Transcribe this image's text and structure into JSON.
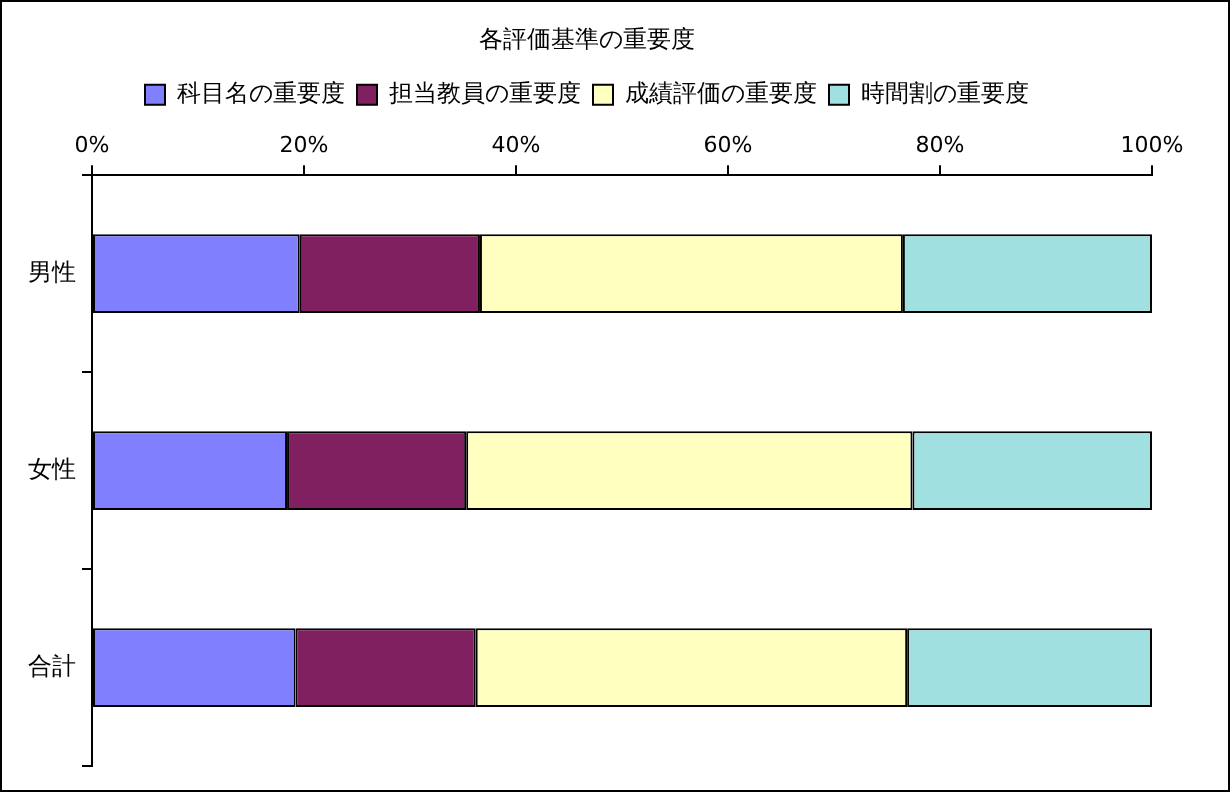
{
  "chart_data": {
    "type": "bar",
    "orientation": "horizontal",
    "stacked": true,
    "title": "各評価基準の重要度",
    "categories": [
      "男性",
      "女性",
      "合計"
    ],
    "series": [
      {
        "name": "科目名の重要度",
        "color": "#8080ff",
        "values": [
          19.6,
          18.4,
          19.2
        ]
      },
      {
        "name": "担当教員の重要度",
        "color": "#802060",
        "values": [
          17.0,
          16.9,
          17.0
        ]
      },
      {
        "name": "成績評価の重要度",
        "color": "#ffffc0",
        "values": [
          39.9,
          42.1,
          40.7
        ]
      },
      {
        "name": "時間割の重要度",
        "color": "#a0e0e0",
        "values": [
          23.5,
          22.6,
          23.1
        ]
      }
    ],
    "xlim": [
      0,
      100
    ],
    "xticks": [
      {
        "value": 0,
        "label": "0%"
      },
      {
        "value": 20,
        "label": "20%"
      },
      {
        "value": 40,
        "label": "40%"
      },
      {
        "value": 60,
        "label": "60%"
      },
      {
        "value": 80,
        "label": "80%"
      },
      {
        "value": 100,
        "label": "100%"
      }
    ],
    "grid": false,
    "legend": "top"
  }
}
